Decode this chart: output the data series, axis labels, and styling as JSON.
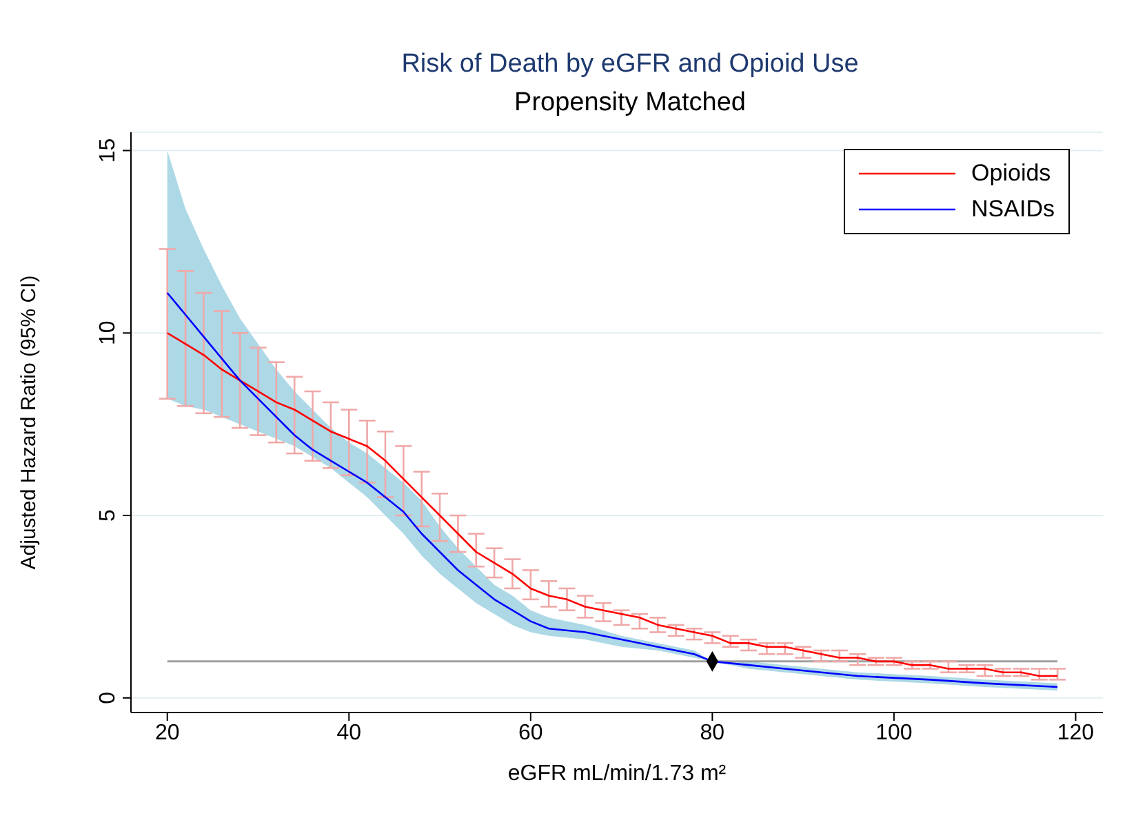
{
  "chart_data": {
    "type": "line",
    "title": "Risk of Death by eGFR and Opioid Use",
    "subtitle": "Propensity Matched",
    "xlabel": "eGFR mL/min/1.73 m²",
    "ylabel": "Adjusted Hazard Ratio (95% CI)",
    "xlim": [
      16,
      123
    ],
    "xticks": [
      20,
      40,
      60,
      80,
      100,
      120
    ],
    "ylim": [
      -0.4,
      15.5
    ],
    "yticks": [
      0,
      5,
      10,
      15
    ],
    "grid": "y",
    "legend": "top right",
    "line_style": "solid",
    "ref_lines": [
      {
        "axis": "y",
        "value": 1,
        "color": "#a0a0a0"
      }
    ],
    "series": [
      {
        "name": "Opioids",
        "color": "#ff0000",
        "x": [
          20,
          22,
          24,
          26,
          28,
          30,
          32,
          34,
          36,
          38,
          40,
          42,
          44,
          46,
          48,
          50,
          52,
          54,
          56,
          58,
          60,
          62,
          64,
          66,
          68,
          70,
          72,
          74,
          76,
          78,
          80,
          82,
          84,
          86,
          88,
          90,
          92,
          94,
          96,
          98,
          100,
          102,
          104,
          106,
          108,
          110,
          112,
          114,
          116,
          118
        ],
        "values": [
          10.0,
          9.7,
          9.4,
          9.0,
          8.7,
          8.4,
          8.1,
          7.9,
          7.6,
          7.3,
          7.1,
          6.9,
          6.5,
          6.0,
          5.5,
          5.0,
          4.5,
          4.0,
          3.7,
          3.4,
          3.0,
          2.8,
          2.7,
          2.5,
          2.4,
          2.3,
          2.2,
          2.0,
          1.9,
          1.8,
          1.7,
          1.5,
          1.5,
          1.4,
          1.4,
          1.3,
          1.2,
          1.1,
          1.1,
          1.0,
          1.0,
          0.9,
          0.9,
          0.8,
          0.8,
          0.8,
          0.7,
          0.7,
          0.6,
          0.6
        ],
        "errors": [
          [
            8.2,
            12.3
          ],
          [
            8.0,
            11.7
          ],
          [
            7.8,
            11.1
          ],
          [
            7.7,
            10.6
          ],
          [
            7.4,
            10.0
          ],
          [
            7.2,
            9.6
          ],
          [
            7.0,
            9.2
          ],
          [
            6.7,
            8.8
          ],
          [
            6.5,
            8.4
          ],
          [
            6.3,
            8.1
          ],
          [
            6.1,
            7.9
          ],
          [
            5.9,
            7.6
          ],
          [
            5.5,
            7.3
          ],
          [
            5.0,
            6.9
          ],
          [
            4.7,
            6.2
          ],
          [
            4.3,
            5.6
          ],
          [
            4.0,
            5.0
          ],
          [
            3.6,
            4.5
          ],
          [
            3.3,
            4.1
          ],
          [
            3.0,
            3.8
          ],
          [
            2.7,
            3.5
          ],
          [
            2.5,
            3.2
          ],
          [
            2.4,
            3.0
          ],
          [
            2.2,
            2.8
          ],
          [
            2.1,
            2.6
          ],
          [
            2.0,
            2.4
          ],
          [
            1.9,
            2.3
          ],
          [
            1.8,
            2.2
          ],
          [
            1.7,
            2.0
          ],
          [
            1.6,
            1.9
          ],
          [
            1.5,
            1.8
          ],
          [
            1.4,
            1.7
          ],
          [
            1.3,
            1.6
          ],
          [
            1.2,
            1.5
          ],
          [
            1.2,
            1.5
          ],
          [
            1.1,
            1.4
          ],
          [
            1.0,
            1.3
          ],
          [
            1.0,
            1.3
          ],
          [
            0.9,
            1.2
          ],
          [
            0.9,
            1.1
          ],
          [
            0.9,
            1.1
          ],
          [
            0.8,
            1.0
          ],
          [
            0.8,
            1.0
          ],
          [
            0.7,
            1.0
          ],
          [
            0.7,
            0.9
          ],
          [
            0.6,
            0.9
          ],
          [
            0.6,
            0.8
          ],
          [
            0.6,
            0.8
          ],
          [
            0.5,
            0.8
          ],
          [
            0.5,
            0.8
          ]
        ]
      },
      {
        "name": "NSAIDs",
        "color": "#0000ff",
        "x": [
          20,
          22,
          24,
          26,
          28,
          30,
          32,
          34,
          36,
          38,
          40,
          42,
          44,
          46,
          48,
          50,
          52,
          54,
          56,
          58,
          60,
          62,
          66,
          70,
          74,
          78,
          80,
          84,
          88,
          96,
          104,
          110,
          118
        ],
        "values": [
          11.1,
          10.5,
          9.9,
          9.3,
          8.7,
          8.2,
          7.7,
          7.2,
          6.8,
          6.5,
          6.2,
          5.9,
          5.5,
          5.1,
          4.5,
          4.0,
          3.5,
          3.1,
          2.7,
          2.4,
          2.1,
          1.9,
          1.8,
          1.6,
          1.4,
          1.2,
          1.0,
          0.9,
          0.8,
          0.6,
          0.5,
          0.4,
          0.3
        ],
        "lower": [
          8.2,
          8.0,
          7.9,
          7.7,
          7.5,
          7.3,
          7.1,
          6.9,
          6.6,
          6.3,
          5.9,
          5.5,
          5.0,
          4.5,
          3.9,
          3.4,
          3.0,
          2.6,
          2.3,
          2.0,
          1.8,
          1.7,
          1.6,
          1.4,
          1.3,
          1.1,
          1.0,
          0.8,
          0.7,
          0.5,
          0.4,
          0.3,
          0.2
        ],
        "upper": [
          15.0,
          13.4,
          12.3,
          11.3,
          10.4,
          9.7,
          9.0,
          8.4,
          7.9,
          7.4,
          7.0,
          6.7,
          6.3,
          5.9,
          5.4,
          4.7,
          4.1,
          3.6,
          3.1,
          2.8,
          2.4,
          2.2,
          2.0,
          1.7,
          1.5,
          1.3,
          1.0,
          1.0,
          0.9,
          0.7,
          0.6,
          0.5,
          0.4
        ]
      },
      {
        "type": "scatter",
        "color": "#000000",
        "marker": "diamond",
        "x": [
          80
        ],
        "values": [
          1
        ]
      }
    ]
  }
}
